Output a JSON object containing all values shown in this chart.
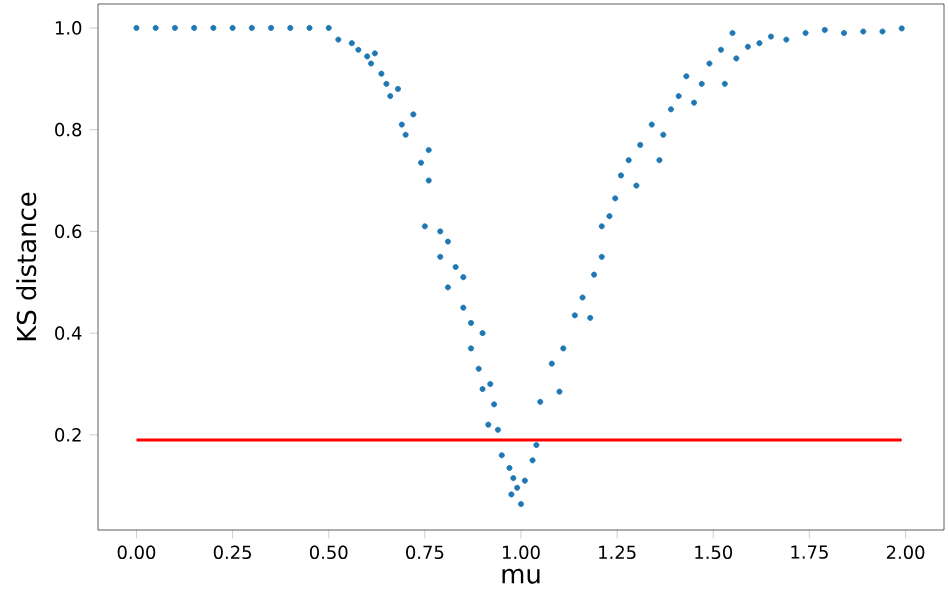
{
  "chart_data": {
    "type": "scatter",
    "xlabel": "mu",
    "ylabel": "KS distance",
    "xlim": [
      -0.1,
      2.1
    ],
    "ylim": [
      0.013,
      1.047
    ],
    "xticks": [
      {
        "value": 0,
        "label": "0.00"
      },
      {
        "value": 0.25,
        "label": "0.25"
      },
      {
        "value": 0.5,
        "label": "0.50"
      },
      {
        "value": 0.75,
        "label": "0.75"
      },
      {
        "value": 1,
        "label": "1.00"
      },
      {
        "value": 1.25,
        "label": "1.25"
      },
      {
        "value": 1.5,
        "label": "1.50"
      },
      {
        "value": 1.75,
        "label": "1.75"
      },
      {
        "value": 2,
        "label": "2.00"
      }
    ],
    "yticks": [
      0.2,
      0.4,
      0.6,
      0.8,
      {
        "value": 1,
        "label": "1.0"
      }
    ],
    "grid": false,
    "series": [
      {
        "color": "#1f77b4",
        "x": [
          0,
          0.05,
          0.1,
          0.15,
          0.2,
          0.25,
          0.3,
          0.35,
          0.4,
          0.45,
          0.5,
          0.525,
          0.56,
          0.577,
          0.6,
          0.62,
          0.61,
          0.637,
          0.65,
          0.66,
          0.68,
          0.69,
          0.7,
          0.72,
          0.74,
          0.76,
          0.76,
          0.75,
          0.79,
          0.81,
          0.79,
          0.83,
          0.81,
          0.85,
          0.85,
          0.87,
          0.9,
          0.87,
          0.89,
          0.9,
          0.92,
          0.93,
          0.915,
          0.94,
          0.95,
          0.97,
          0.98,
          0.975,
          1.0,
          1.01,
          0.99,
          1.03,
          1.04,
          1.05,
          1.08,
          1.1,
          1.11,
          1.14,
          1.16,
          1.18,
          1.19,
          1.21,
          1.21,
          1.23,
          1.245,
          1.26,
          1.28,
          1.3,
          1.31,
          1.34,
          1.36,
          1.37,
          1.39,
          1.41,
          1.43,
          1.45,
          1.47,
          1.49,
          1.52,
          1.53,
          1.55,
          1.56,
          1.59,
          1.62,
          1.65,
          1.69,
          1.74,
          1.79,
          1.84,
          1.89,
          1.94,
          1.99
        ],
        "values": [
          1.0,
          1.0,
          1.0,
          1.0,
          1.0,
          1.0,
          1.0,
          1.0,
          1.0,
          1.0,
          1.0,
          0.977,
          0.97,
          0.957,
          0.944,
          0.95,
          0.93,
          0.91,
          0.89,
          0.866,
          0.88,
          0.81,
          0.79,
          0.83,
          0.735,
          0.76,
          0.7,
          0.61,
          0.6,
          0.58,
          0.55,
          0.53,
          0.49,
          0.51,
          0.45,
          0.42,
          0.4,
          0.37,
          0.33,
          0.29,
          0.3,
          0.26,
          0.22,
          0.21,
          0.16,
          0.135,
          0.115,
          0.083,
          0.064,
          0.11,
          0.096,
          0.15,
          0.18,
          0.265,
          0.34,
          0.285,
          0.37,
          0.435,
          0.47,
          0.43,
          0.515,
          0.55,
          0.61,
          0.63,
          0.665,
          0.71,
          0.74,
          0.69,
          0.77,
          0.81,
          0.74,
          0.79,
          0.84,
          0.866,
          0.905,
          0.853,
          0.89,
          0.93,
          0.957,
          0.89,
          0.99,
          0.94,
          0.963,
          0.97,
          0.983,
          0.977,
          0.99,
          0.996,
          0.99,
          0.993,
          0.993,
          0.999
        ]
      }
    ],
    "ref_lines": [
      {
        "axis": "y",
        "value": 0.19,
        "color": "#ff0000"
      }
    ]
  }
}
